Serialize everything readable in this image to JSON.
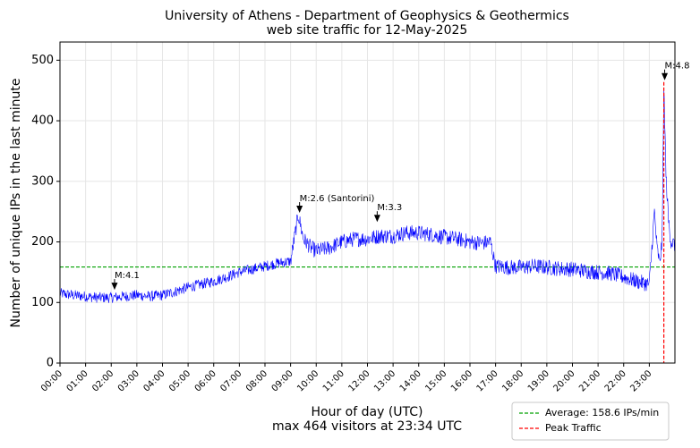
{
  "chart_data": {
    "type": "line",
    "title": "University of Athens - Department of Geophysics & Geothermics",
    "subtitle": "web site traffic for 12-May-2025",
    "xlabel": "Hour of day (UTC)",
    "xlabel_sub": "max 464 visitors at 23:34 UTC",
    "ylabel": "Number of unique IPs in the last minute",
    "xlim": [
      0,
      24
    ],
    "ylim": [
      0,
      530
    ],
    "y_ticks": [
      0,
      100,
      200,
      300,
      400,
      500
    ],
    "x_tick_labels": [
      "00:00",
      "01:00",
      "02:00",
      "03:00",
      "04:00",
      "05:00",
      "06:00",
      "07:00",
      "08:00",
      "09:00",
      "10:00",
      "11:00",
      "12:00",
      "13:00",
      "14:00",
      "15:00",
      "16:00",
      "17:00",
      "18:00",
      "19:00",
      "20:00",
      "21:00",
      "22:00",
      "23:00"
    ],
    "grid": true,
    "series_color": "#0000ff",
    "traffic": {
      "hours": [
        0,
        0.5,
        1,
        1.5,
        2,
        2.5,
        3,
        3.5,
        4,
        4.5,
        5,
        5.5,
        6,
        6.5,
        7,
        7.5,
        8,
        8.5,
        9,
        9.3,
        9.5,
        9.8,
        10,
        10.5,
        11,
        11.5,
        12,
        12.5,
        13,
        13.5,
        14,
        14.5,
        15,
        15.5,
        16,
        16.5,
        16.8,
        17,
        17.5,
        18,
        18.5,
        19,
        19.5,
        20,
        20.5,
        21,
        21.5,
        22,
        22.5,
        22.8,
        23,
        23.2,
        23.3,
        23.4,
        23.5,
        23.57,
        23.65,
        23.75,
        23.85,
        24
      ],
      "values": [
        115,
        112,
        110,
        108,
        108,
        110,
        112,
        110,
        112,
        118,
        125,
        130,
        135,
        142,
        150,
        155,
        160,
        165,
        168,
        245,
        205,
        190,
        185,
        190,
        200,
        205,
        205,
        210,
        210,
        215,
        215,
        212,
        208,
        205,
        200,
        198,
        200,
        160,
        158,
        158,
        160,
        158,
        156,
        155,
        152,
        150,
        148,
        142,
        135,
        132,
        130,
        250,
        190,
        165,
        200,
        464,
        310,
        235,
        200,
        195
      ]
    },
    "average": {
      "value": 158.6,
      "color": "#00a000"
    },
    "peak": {
      "hour": 23.567,
      "color": "#ff0000"
    },
    "annotations": [
      {
        "label": "M:4.1",
        "hour": 2.13,
        "value": 118
      },
      {
        "label": "M:2.6 (Santorini)",
        "hour": 9.35,
        "value": 245
      },
      {
        "label": "M:3.3",
        "hour": 12.38,
        "value": 230
      },
      {
        "label": "M:4.8",
        "hour": 23.6,
        "value": 464
      }
    ],
    "legend": {
      "position": "bottom-right",
      "items": [
        {
          "label": "Average: 158.6 IPs/min",
          "style": "dashed",
          "color": "#00a000"
        },
        {
          "label": "Peak Traffic",
          "style": "dashed",
          "color": "#ff0000"
        }
      ]
    }
  }
}
